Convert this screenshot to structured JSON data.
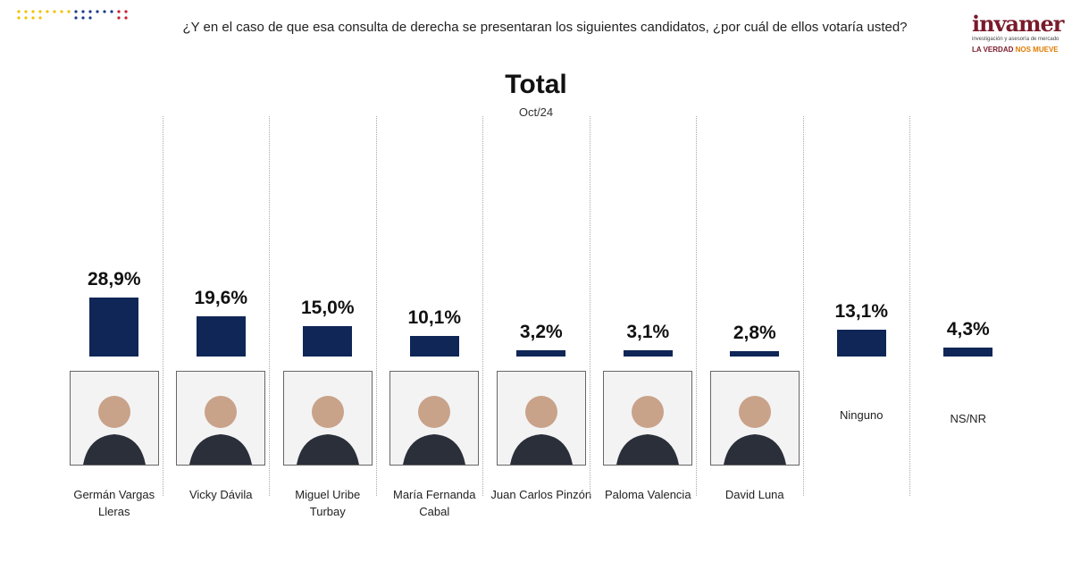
{
  "header": {
    "question": "¿Y en el caso de que esa consulta de derecha se presentaran los siguientes candidatos, ¿por cuál de ellos votaría usted?",
    "logo": "invamer",
    "logo_tagline": "investigación y asesoría de mercado",
    "slogan_a": "LA VERDAD",
    "slogan_b": "NOS MUEVE"
  },
  "chart_data": {
    "type": "bar",
    "title": "Total",
    "subtitle": "Oct/24",
    "categories": [
      "Germán Vargas Lleras",
      "Vicky Dávila",
      "Miguel Uribe Turbay",
      "María Fernanda Cabal",
      "Juan Carlos Pinzón",
      "Paloma Valencia",
      "David Luna",
      "Ninguno",
      "NS/NR"
    ],
    "values": [
      28.9,
      19.6,
      15.0,
      10.1,
      3.2,
      3.1,
      2.8,
      13.1,
      4.3
    ],
    "value_labels": [
      "28,9%",
      "19,6%",
      "15,0%",
      "10,1%",
      "3,2%",
      "3,1%",
      "2,8%",
      "13,1%",
      "4,3%"
    ],
    "color": "#0f2656"
  }
}
